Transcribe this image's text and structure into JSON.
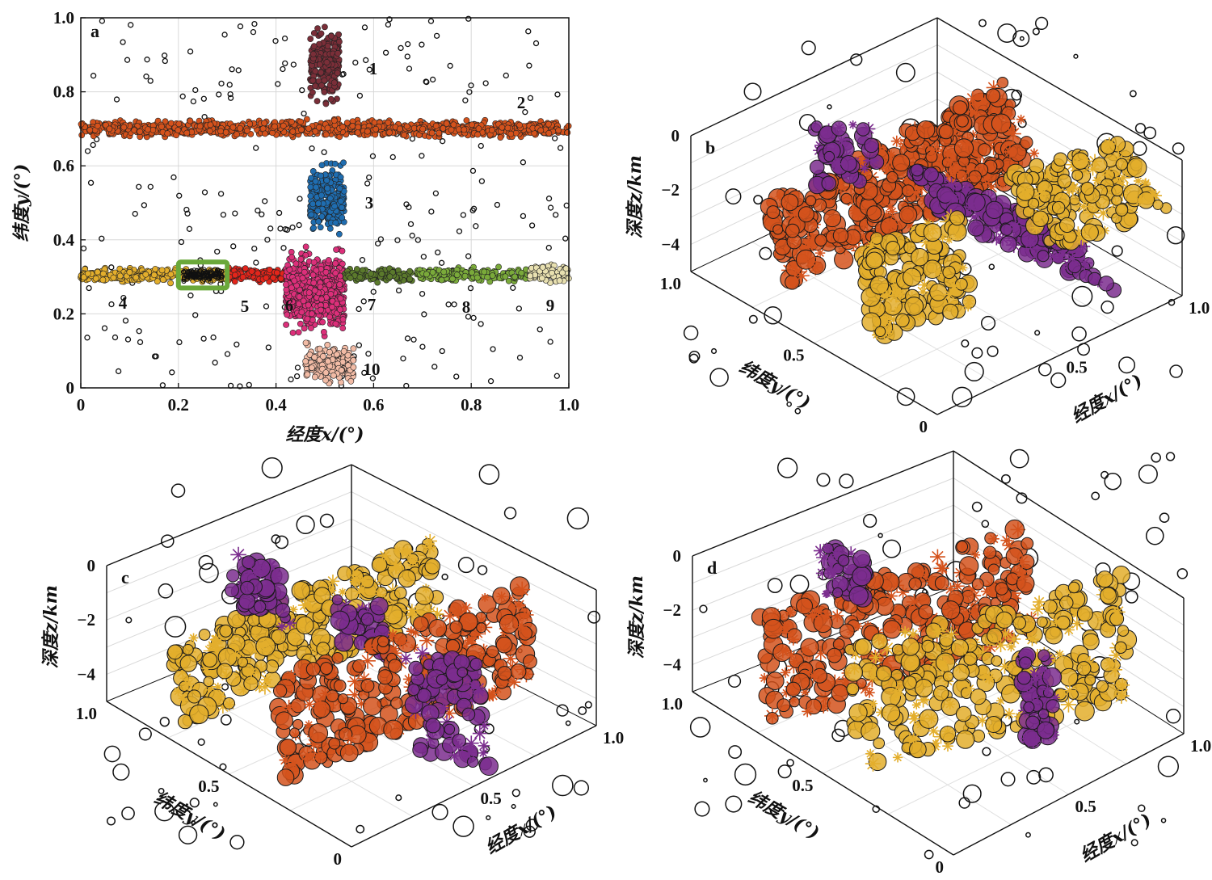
{
  "colors": {
    "c1": "#7a2e38",
    "c2": "#d4521c",
    "c3": "#1f6db0",
    "c4": "#e3ae2c",
    "c5": "#e3251b",
    "c6": "#dc2f7a",
    "c7": "#5b7a2c",
    "c8": "#7aaa3a",
    "c9": "#e8e0b0",
    "c10": "#f2bba5",
    "purple": "#7b2d8e",
    "box": "#6aa83a"
  },
  "chart_data": [
    {
      "panel": "a",
      "type": "scatter",
      "xlabel": "经度x/(°)",
      "ylabel": "纬度y/(°)",
      "xlim": [
        0,
        1
      ],
      "ylim": [
        0,
        1
      ],
      "x_ticks": [
        "0",
        "0.2",
        "0.4",
        "0.6",
        "0.8",
        "1.0"
      ],
      "y_ticks": [
        "0",
        "0.2",
        "0.4",
        "0.6",
        "0.8",
        "1.0"
      ],
      "grid": true,
      "clusters": [
        {
          "label": "1",
          "x_range": [
            0.47,
            0.53
          ],
          "y_range": [
            0.75,
            1.0
          ],
          "color": "#7a2e38"
        },
        {
          "label": "2",
          "x_range": [
            0.0,
            1.0
          ],
          "y_range": [
            0.67,
            0.73
          ],
          "color": "#d4521c"
        },
        {
          "label": "3",
          "x_range": [
            0.47,
            0.54
          ],
          "y_range": [
            0.4,
            0.63
          ],
          "color": "#1f6db0"
        },
        {
          "label": "4",
          "x_range": [
            0.0,
            0.3
          ],
          "y_range": [
            0.28,
            0.33
          ],
          "color": "#e3ae2c"
        },
        {
          "label": "5",
          "x_range": [
            0.3,
            0.42
          ],
          "y_range": [
            0.28,
            0.33
          ],
          "color": "#e3251b"
        },
        {
          "label": "6",
          "x_range": [
            0.42,
            0.54
          ],
          "y_range": [
            0.12,
            0.4
          ],
          "color": "#dc2f7a"
        },
        {
          "label": "7",
          "x_range": [
            0.54,
            0.69
          ],
          "y_range": [
            0.28,
            0.33
          ],
          "color": "#5b7a2c"
        },
        {
          "label": "8",
          "x_range": [
            0.69,
            0.92
          ],
          "y_range": [
            0.28,
            0.33
          ],
          "color": "#7aaa3a"
        },
        {
          "label": "9",
          "x_range": [
            0.92,
            1.0
          ],
          "y_range": [
            0.28,
            0.34
          ],
          "color": "#e8e0b0"
        },
        {
          "label": "10",
          "x_range": [
            0.46,
            0.56
          ],
          "y_range": [
            0.0,
            0.13
          ],
          "color": "#f2bba5"
        }
      ],
      "highlight_box": {
        "x": [
          0.2,
          0.3
        ],
        "y": [
          0.27,
          0.34
        ]
      },
      "noise_points": "black open circles scattered over the full domain"
    },
    {
      "panel": "b",
      "type": "scatter3d",
      "zlabel": "深度z/km",
      "ylabel": "纬度y/(°)",
      "xlabel": "经度x/(°)",
      "z_ticks": [
        "0",
        "−2",
        "−4"
      ],
      "y_ticks": [
        "1.0",
        "0.5",
        "0"
      ],
      "x_ticks": [
        "0.5",
        "1.0"
      ],
      "series_colors": [
        "#d4521c",
        "#e3ae2c",
        "#7b2d8e"
      ]
    },
    {
      "panel": "c",
      "type": "scatter3d",
      "zlabel": "深度z/km",
      "ylabel": "纬度y/(°)",
      "xlabel": "经度x/(°)",
      "z_ticks": [
        "0",
        "−2",
        "−4"
      ],
      "y_ticks": [
        "1.0",
        "0.5",
        "0"
      ],
      "x_ticks": [
        "0.5",
        "1.0"
      ],
      "series_colors": [
        "#d4521c",
        "#e3ae2c",
        "#7b2d8e"
      ]
    },
    {
      "panel": "d",
      "type": "scatter3d",
      "zlabel": "深度z/km",
      "ylabel": "纬度y/(°)",
      "xlabel": "经度x/(°)",
      "z_ticks": [
        "0",
        "−2",
        "−4"
      ],
      "y_ticks": [
        "1.0",
        "0.5",
        "0"
      ],
      "x_ticks": [
        "0.5",
        "1.0"
      ],
      "series_colors": [
        "#d4521c",
        "#e3ae2c",
        "#7b2d8e"
      ]
    }
  ]
}
